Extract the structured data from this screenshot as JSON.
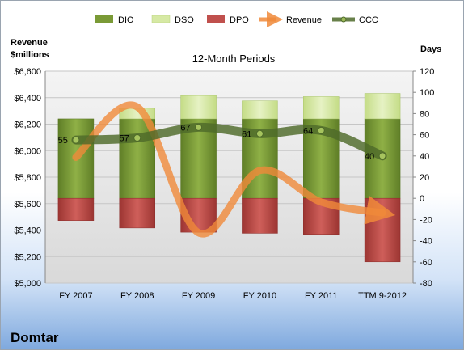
{
  "chart_data": {
    "type": "bar",
    "title": "12-Month Periods",
    "company": "Domtar",
    "y_left_label": [
      "Revenue",
      "$millions"
    ],
    "y_right_label": "Days",
    "categories": [
      "FY 2007",
      "FY 2008",
      "FY 2009",
      "FY 2010",
      "FY 2011",
      "TTM 9-2012"
    ],
    "left_axis": {
      "min": 5000,
      "max": 6600,
      "step": 200
    },
    "right_axis": {
      "min": -80,
      "max": 120,
      "step": 20
    },
    "left_ticks": [
      "$5,000",
      "$5,200",
      "$5,400",
      "$5,600",
      "$5,800",
      "$6,000",
      "$6,200",
      "$6,400",
      "$6,600"
    ],
    "right_ticks": [
      "-80",
      "-60",
      "-40",
      "-20",
      "0",
      "20",
      "40",
      "60",
      "80",
      "100",
      "120"
    ],
    "series": [
      {
        "name": "DIO",
        "color": "#7a9a36",
        "values": [
          75,
          75,
          75,
          75,
          75,
          75
        ]
      },
      {
        "name": "DSO",
        "color": "#d6e9a4",
        "values": [
          0,
          10,
          22,
          17,
          21,
          24
        ]
      },
      {
        "name": "DPO",
        "color": "#c0504d",
        "values": [
          -21,
          -28,
          -32,
          -33,
          -34,
          -60
        ]
      },
      {
        "name": "Revenue",
        "color": "#f08a3a",
        "values": [
          5950,
          6330,
          5380,
          5850,
          5612,
          5530
        ]
      },
      {
        "name": "CCC",
        "color": "#4e6a2a",
        "values": [
          55,
          57,
          67,
          61,
          64,
          40
        ]
      }
    ],
    "ccc_labels": [
      "55",
      "57",
      "67",
      "61",
      "64",
      "40"
    ],
    "legend_position": "top"
  }
}
